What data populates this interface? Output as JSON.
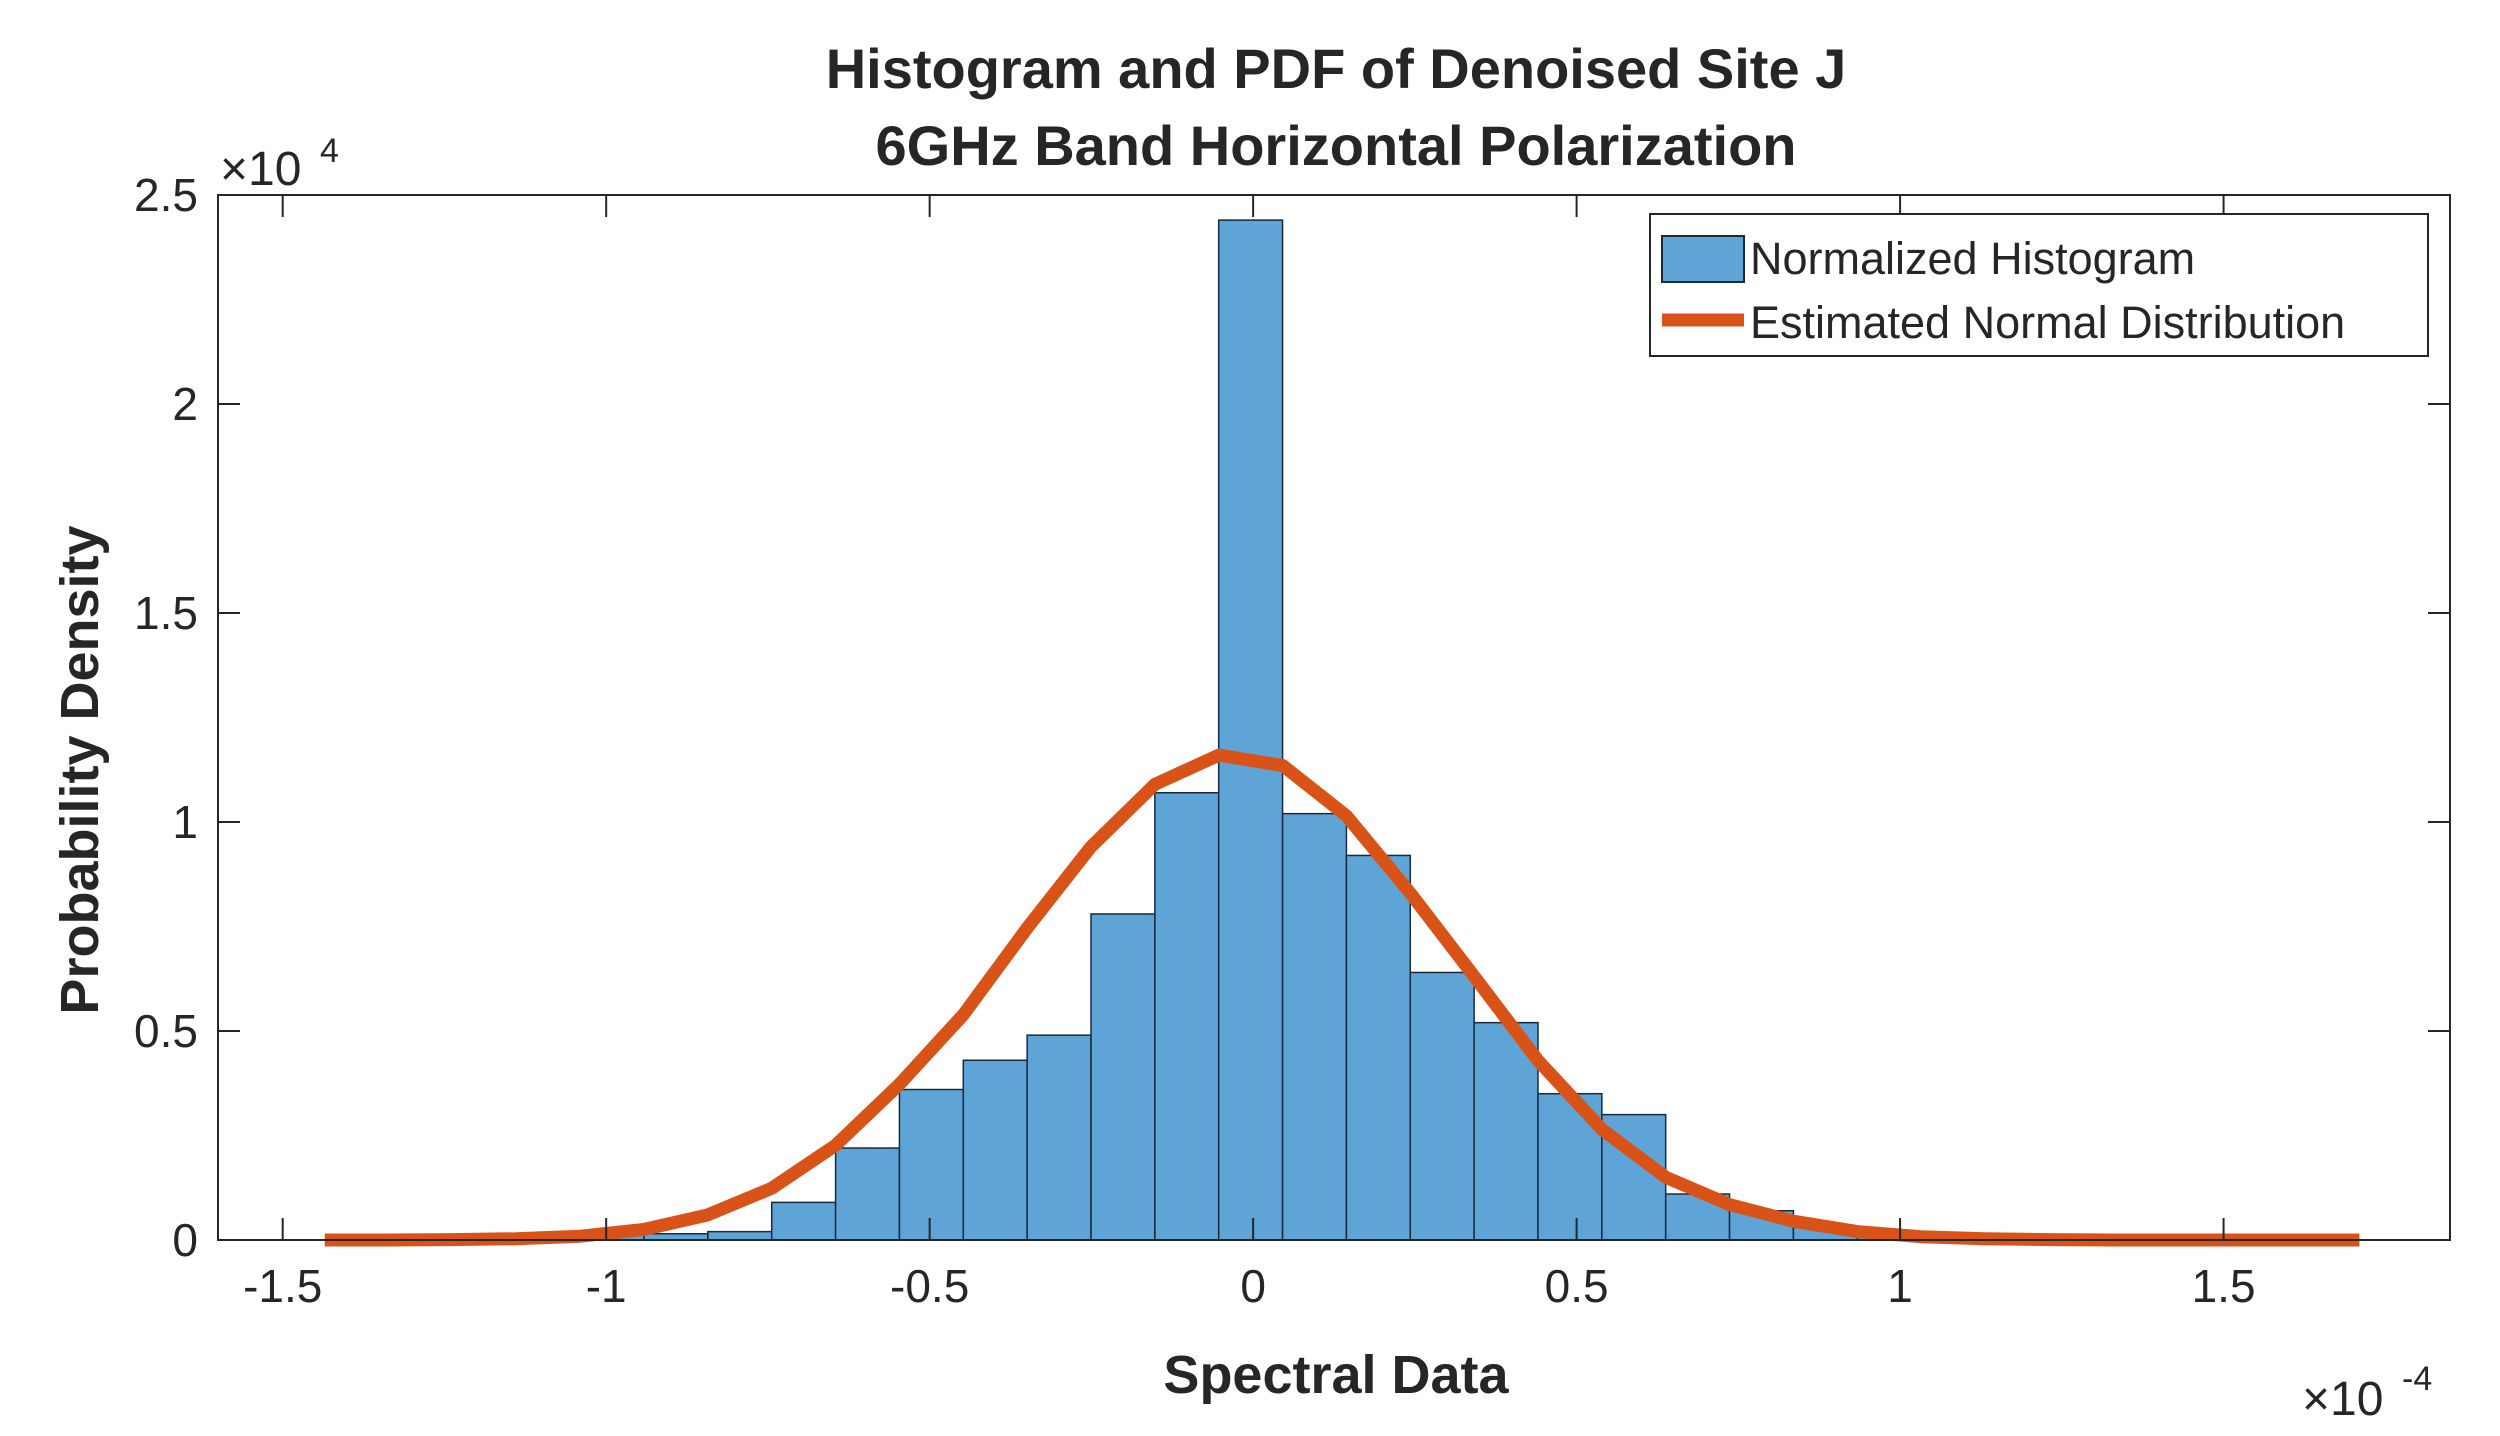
{
  "chart_data": {
    "type": "bar",
    "title": [
      "Histogram and PDF of Denoised Site J",
      "6GHz Band Horizontal Polarization"
    ],
    "xlabel": "Spectral Data",
    "ylabel": "Probability Density",
    "x_scale_exponent": "-4",
    "y_scale_exponent": "4",
    "x_multiplier_prefix": "×10",
    "y_multiplier_prefix": "×10",
    "xlim": [
      -1.6,
      1.85
    ],
    "ylim": [
      0,
      2.5
    ],
    "xticks": [
      -1.5,
      -1,
      -0.5,
      0,
      0.5,
      1,
      1.5
    ],
    "xtick_labels": [
      "-1.5",
      "-1",
      "-0.5",
      "0",
      "0.5",
      "1",
      "1.5"
    ],
    "yticks": [
      0,
      0.5,
      1,
      1.5,
      2,
      2.5
    ],
    "ytick_labels": [
      "0",
      "0.5",
      "1",
      "1.5",
      "2",
      "2.5"
    ],
    "grid": false,
    "legend_position": "top-right",
    "colors": {
      "bars": "#5fa4d6",
      "bar_edge": "#1a2a3a",
      "curve": "#d95319",
      "axes": "#262626"
    },
    "series": [
      {
        "name": "Normalized Histogram",
        "type": "bar",
        "bin_width": 0.0987,
        "bin_edges": [
          -1.435,
          -1.3363,
          -1.2376,
          -1.1389,
          -1.0402,
          -0.9415,
          -0.8428,
          -0.7441,
          -0.6454,
          -0.5467,
          -0.448,
          -0.3493,
          -0.2506,
          -0.1519,
          -0.0532,
          0.0455,
          0.1442,
          0.2429,
          0.3416,
          0.4403,
          0.539,
          0.6377,
          0.7364,
          0.8351,
          0.9338,
          1.0325,
          1.1312,
          1.2299,
          1.3286,
          1.4273,
          1.526,
          1.6247,
          1.7234
        ],
        "values": [
          0.0,
          0.0,
          0.01,
          0.015,
          0.02,
          0.015,
          0.02,
          0.09,
          0.22,
          0.36,
          0.43,
          0.49,
          0.78,
          1.07,
          2.44,
          1.02,
          0.92,
          0.64,
          0.52,
          0.35,
          0.3,
          0.11,
          0.07,
          0.03,
          0.015,
          0.005,
          0.01,
          0.005,
          0.0,
          0.0,
          0.0,
          0.0
        ]
      },
      {
        "name": "Estimated Normal Distribution",
        "type": "line",
        "x": [
          -1.435,
          -1.336,
          -1.238,
          -1.139,
          -1.04,
          -0.942,
          -0.843,
          -0.744,
          -0.645,
          -0.547,
          -0.448,
          -0.349,
          -0.251,
          -0.152,
          -0.053,
          0.046,
          0.144,
          0.243,
          0.342,
          0.44,
          0.539,
          0.638,
          0.736,
          0.835,
          0.934,
          1.032,
          1.131,
          1.23,
          1.328,
          1.427,
          1.526,
          1.624,
          1.71
        ],
        "y": [
          0.0,
          0.0,
          0.001,
          0.003,
          0.009,
          0.025,
          0.06,
          0.124,
          0.227,
          0.372,
          0.539,
          0.747,
          0.94,
          1.09,
          1.16,
          1.135,
          1.015,
          0.83,
          0.63,
          0.43,
          0.265,
          0.15,
          0.085,
          0.045,
          0.02,
          0.008,
          0.003,
          0.001,
          0.0,
          0.0,
          0.0,
          0.0,
          0.0
        ]
      }
    ]
  }
}
